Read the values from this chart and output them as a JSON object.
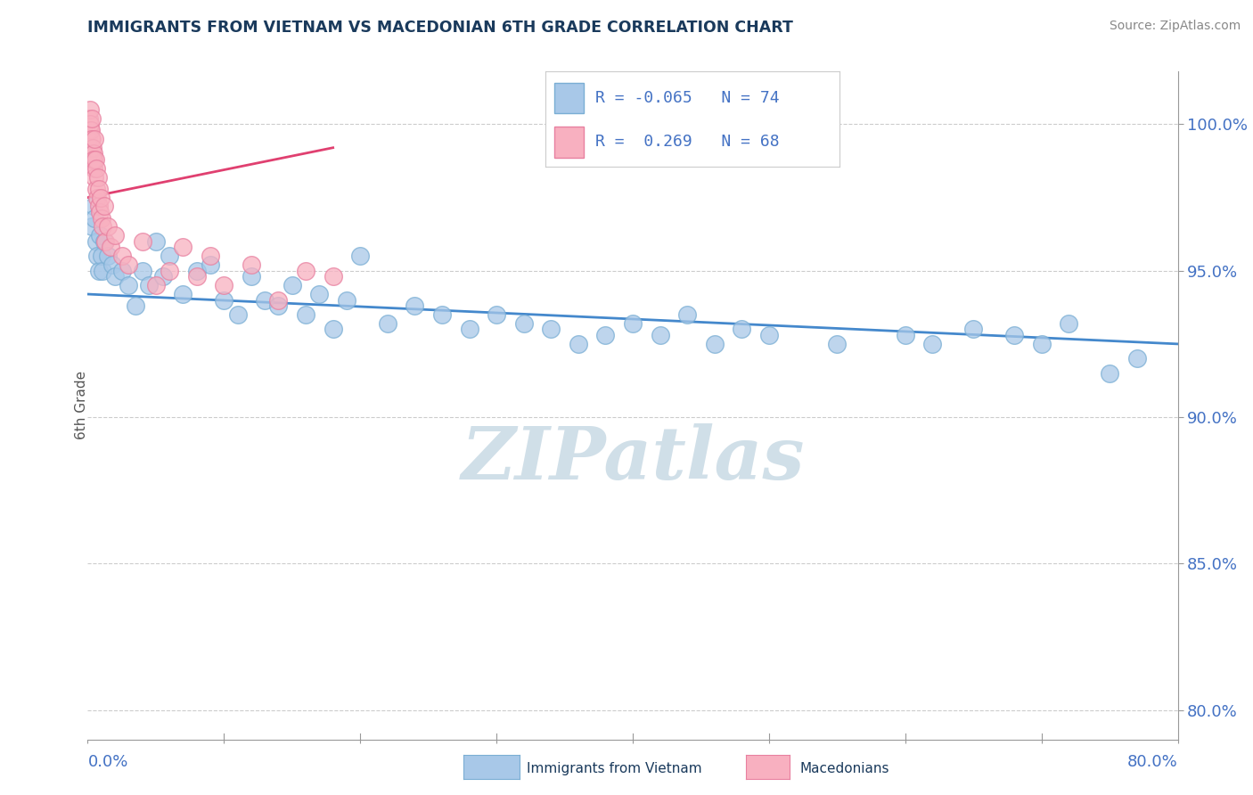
{
  "title": "IMMIGRANTS FROM VIETNAM VS MACEDONIAN 6TH GRADE CORRELATION CHART",
  "source": "Source: ZipAtlas.com",
  "ylabel": "6th Grade",
  "yticks": [
    80.0,
    85.0,
    90.0,
    95.0,
    100.0
  ],
  "xticks": [
    0.0,
    10.0,
    20.0,
    30.0,
    40.0,
    50.0,
    60.0,
    70.0,
    80.0
  ],
  "xmin": 0.0,
  "xmax": 80.0,
  "ymin": 79.0,
  "ymax": 101.8,
  "legend_r_blue": "-0.065",
  "legend_n_blue": "74",
  "legend_r_pink": "0.269",
  "legend_n_pink": "68",
  "blue_color": "#a8c8e8",
  "blue_edge": "#7aaed4",
  "pink_color": "#f8b0c0",
  "pink_edge": "#e880a0",
  "trend_blue_color": "#4488cc",
  "trend_pink_color": "#e04070",
  "watermark_color": "#d0dfe8",
  "title_color": "#1a3a5c",
  "axis_label_color": "#4472c4",
  "grid_color": "#cccccc",
  "blue_scatter_x": [
    0.3,
    0.4,
    0.5,
    0.6,
    0.7,
    0.8,
    0.9,
    1.0,
    1.1,
    1.2,
    1.5,
    1.8,
    2.0,
    2.5,
    3.0,
    3.5,
    4.0,
    4.5,
    5.0,
    5.5,
    6.0,
    7.0,
    8.0,
    9.0,
    10.0,
    11.0,
    12.0,
    13.0,
    14.0,
    15.0,
    16.0,
    17.0,
    18.0,
    19.0,
    20.0,
    22.0,
    24.0,
    26.0,
    28.0,
    30.0,
    32.0,
    34.0,
    36.0,
    38.0,
    40.0,
    42.0,
    44.0,
    46.0,
    48.0,
    50.0,
    55.0,
    60.0,
    62.0,
    65.0,
    68.0,
    70.0,
    72.0,
    75.0,
    77.0
  ],
  "blue_scatter_y": [
    96.5,
    97.2,
    96.8,
    96.0,
    95.5,
    95.0,
    96.2,
    95.5,
    95.0,
    96.0,
    95.5,
    95.2,
    94.8,
    95.0,
    94.5,
    93.8,
    95.0,
    94.5,
    96.0,
    94.8,
    95.5,
    94.2,
    95.0,
    95.2,
    94.0,
    93.5,
    94.8,
    94.0,
    93.8,
    94.5,
    93.5,
    94.2,
    93.0,
    94.0,
    95.5,
    93.2,
    93.8,
    93.5,
    93.0,
    93.5,
    93.2,
    93.0,
    92.5,
    92.8,
    93.2,
    92.8,
    93.5,
    92.5,
    93.0,
    92.8,
    92.5,
    92.8,
    92.5,
    93.0,
    92.8,
    92.5,
    93.2,
    91.5,
    92.0
  ],
  "pink_scatter_x": [
    0.05,
    0.08,
    0.1,
    0.12,
    0.15,
    0.18,
    0.2,
    0.22,
    0.25,
    0.28,
    0.3,
    0.32,
    0.35,
    0.38,
    0.4,
    0.42,
    0.45,
    0.48,
    0.5,
    0.55,
    0.6,
    0.65,
    0.7,
    0.75,
    0.8,
    0.85,
    0.9,
    0.95,
    1.0,
    1.1,
    1.2,
    1.3,
    1.5,
    1.7,
    2.0,
    2.5,
    3.0,
    4.0,
    5.0,
    6.0,
    7.0,
    8.0,
    9.0,
    10.0,
    12.0,
    14.0,
    16.0,
    18.0
  ],
  "pink_scatter_y": [
    99.5,
    99.8,
    100.2,
    99.0,
    100.5,
    99.8,
    100.0,
    99.5,
    99.8,
    100.2,
    99.0,
    99.5,
    98.8,
    99.2,
    98.5,
    99.0,
    98.8,
    99.5,
    98.2,
    98.8,
    97.8,
    98.5,
    97.5,
    98.2,
    97.2,
    97.8,
    97.0,
    97.5,
    96.8,
    96.5,
    97.2,
    96.0,
    96.5,
    95.8,
    96.2,
    95.5,
    95.2,
    96.0,
    94.5,
    95.0,
    95.8,
    94.8,
    95.5,
    94.5,
    95.2,
    94.0,
    95.0,
    94.8
  ],
  "blue_trend_x": [
    0.0,
    80.0
  ],
  "blue_trend_y": [
    94.2,
    92.5
  ],
  "pink_trend_x": [
    0.0,
    18.0
  ],
  "pink_trend_y": [
    97.5,
    99.2
  ]
}
